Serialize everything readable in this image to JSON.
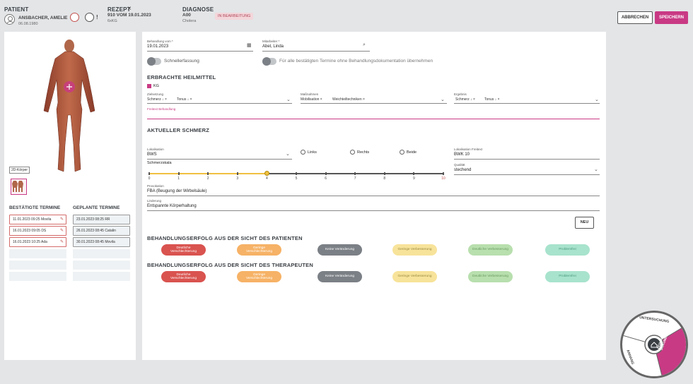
{
  "header": {
    "patient_label": "PATIENT",
    "patient_name": "ANSBACHER, AMELIE",
    "patient_dob": "06.08.1980",
    "prescription_label": "REZEPT",
    "prescription_value": "910 VOM 19.01.2023",
    "prescription_sub": "6xKG",
    "diagnosis_label": "DIAGNOSE",
    "diagnosis_code": "A00",
    "diagnosis_name": "Cholera",
    "status": "IN BEARBEITUNG",
    "cancel": "ABBRECHEN",
    "save": "SPEICHERN"
  },
  "left": {
    "body_view_btn": "2D-Körper",
    "confirmed_title": "BESTÄTIGTE TERMINE",
    "planned_title": "GEPLANTE TERMINE",
    "confirmed": [
      "11.01.2023 09:25 Movila",
      "16.01.2023 09:05 DS",
      "16.01.2023 10:25 Ada"
    ],
    "planned": [
      "23.01.2023 08:25 RR",
      "26.01.2023 08:45 Catalin",
      "30.01.2023 08:45 Movila"
    ]
  },
  "form": {
    "treatment_date_label": "Behandlung vom *",
    "treatment_date": "19.01.2023",
    "employee_label": "Mitarbeiter *",
    "employee": "Abel, Linda",
    "quick_entry": "Schnellerfassung",
    "apply_all": "Für alle bestätigten Termine ohne Behandlungsdokumentation übernehmen",
    "section_remedies": "ERBRACHTE HEILMITTEL",
    "kg": "KG",
    "goal_label": "Zielsetzung",
    "goal_chips": [
      "Schmerz ↓",
      "Tonus ↓"
    ],
    "measures_label": "Maßnahmen",
    "measures_chips": [
      "Mobilisation",
      "Weichteiltechniken"
    ],
    "result_label": "Ergebnis",
    "result_chips": [
      "Schmerz ↓",
      "Tonus ↓"
    ],
    "freetext_label": "Freitext Behandlung",
    "section_pain": "AKTUELLER SCHMERZ",
    "localization_label": "Lokalisation",
    "localization": "BWS",
    "radio_left": "Links",
    "radio_right": "Rechts",
    "radio_both": "Beide",
    "loc_free_label": "Lokalisation Freitext",
    "loc_free": "BWK 10",
    "scale_label": "Schmerzskala",
    "scale_ticks": [
      "0",
      "1",
      "2",
      "3",
      "4",
      "5",
      "6",
      "7",
      "8",
      "9",
      "10"
    ],
    "scale_value": 4,
    "quality_label": "Qualität",
    "quality": "stechend",
    "provocation_label": "Provokation",
    "provocation": "FBA (Beugung der Wirbelsäule)",
    "relief_label": "Linderung",
    "relief": "Entspannte Körperhaltung",
    "new_btn": "NEU",
    "section_patient": "BEHANDLUNGSERFOLG AUS DER SICHT DES PATIENTEN",
    "section_therapist": "BEHANDLUNGSERFOLG AUS DER SICHT DES THERAPEUTEN",
    "outcomes": [
      "Deutliche Verschlechterung",
      "Geringe Verschlechterung",
      "Keine Veränderung",
      "Geringe Verbesserung",
      "Deutliche Verbesserung",
      "Problemfrei"
    ]
  },
  "wheel": {
    "top": "UNTERSUCHUNG",
    "left": "ANHANG",
    "right": "BEHANDLUNGS-DOKUMENTATION"
  },
  "colors": {
    "accent": "#c93a84",
    "outcomes": [
      "#d9534f",
      "#f6b266",
      "#7b8086",
      "#f7e39a",
      "#b8dfae",
      "#a8e3cd"
    ]
  }
}
